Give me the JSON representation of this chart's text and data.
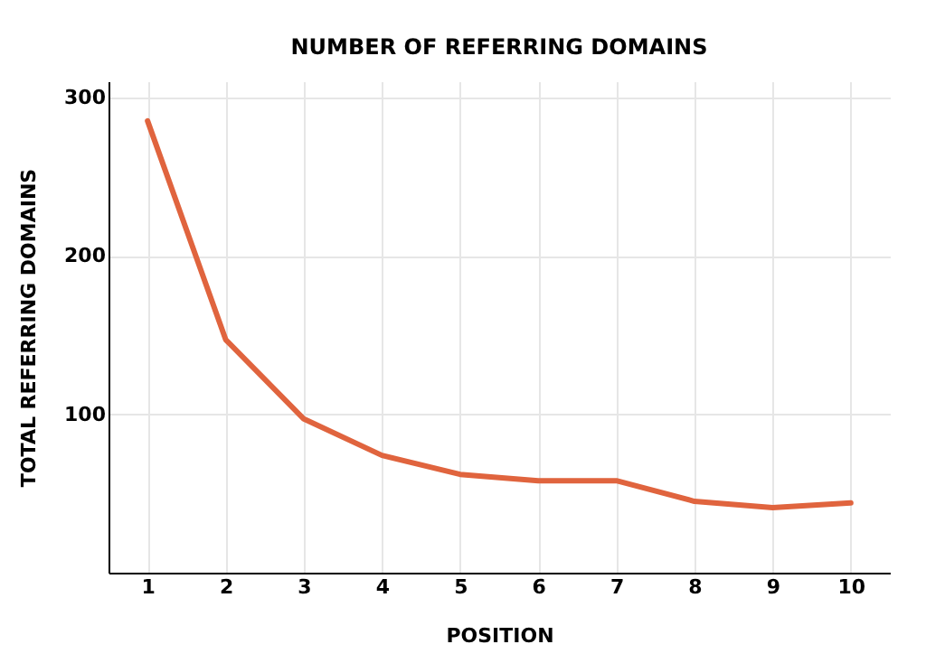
{
  "chart_data": {
    "type": "line",
    "title": "NUMBER OF REFERRING DOMAINS",
    "xlabel": "POSITION",
    "ylabel": "TOTAL REFERRING DOMAINS",
    "x": [
      1,
      2,
      3,
      4,
      5,
      6,
      7,
      8,
      9,
      10
    ],
    "series": [
      {
        "color": "#e0643e",
        "values": [
          285,
          147,
          97,
          74,
          62,
          58,
          58,
          45,
          41,
          44
        ]
      }
    ],
    "xlim": [
      0.5,
      10.5
    ],
    "xticks": [
      1,
      2,
      3,
      4,
      5,
      6,
      7,
      8,
      9,
      10
    ],
    "ylim": [
      0,
      310
    ],
    "yticks": [
      100,
      200,
      300
    ],
    "grid": true,
    "marker": "none",
    "line_style": "solid"
  }
}
